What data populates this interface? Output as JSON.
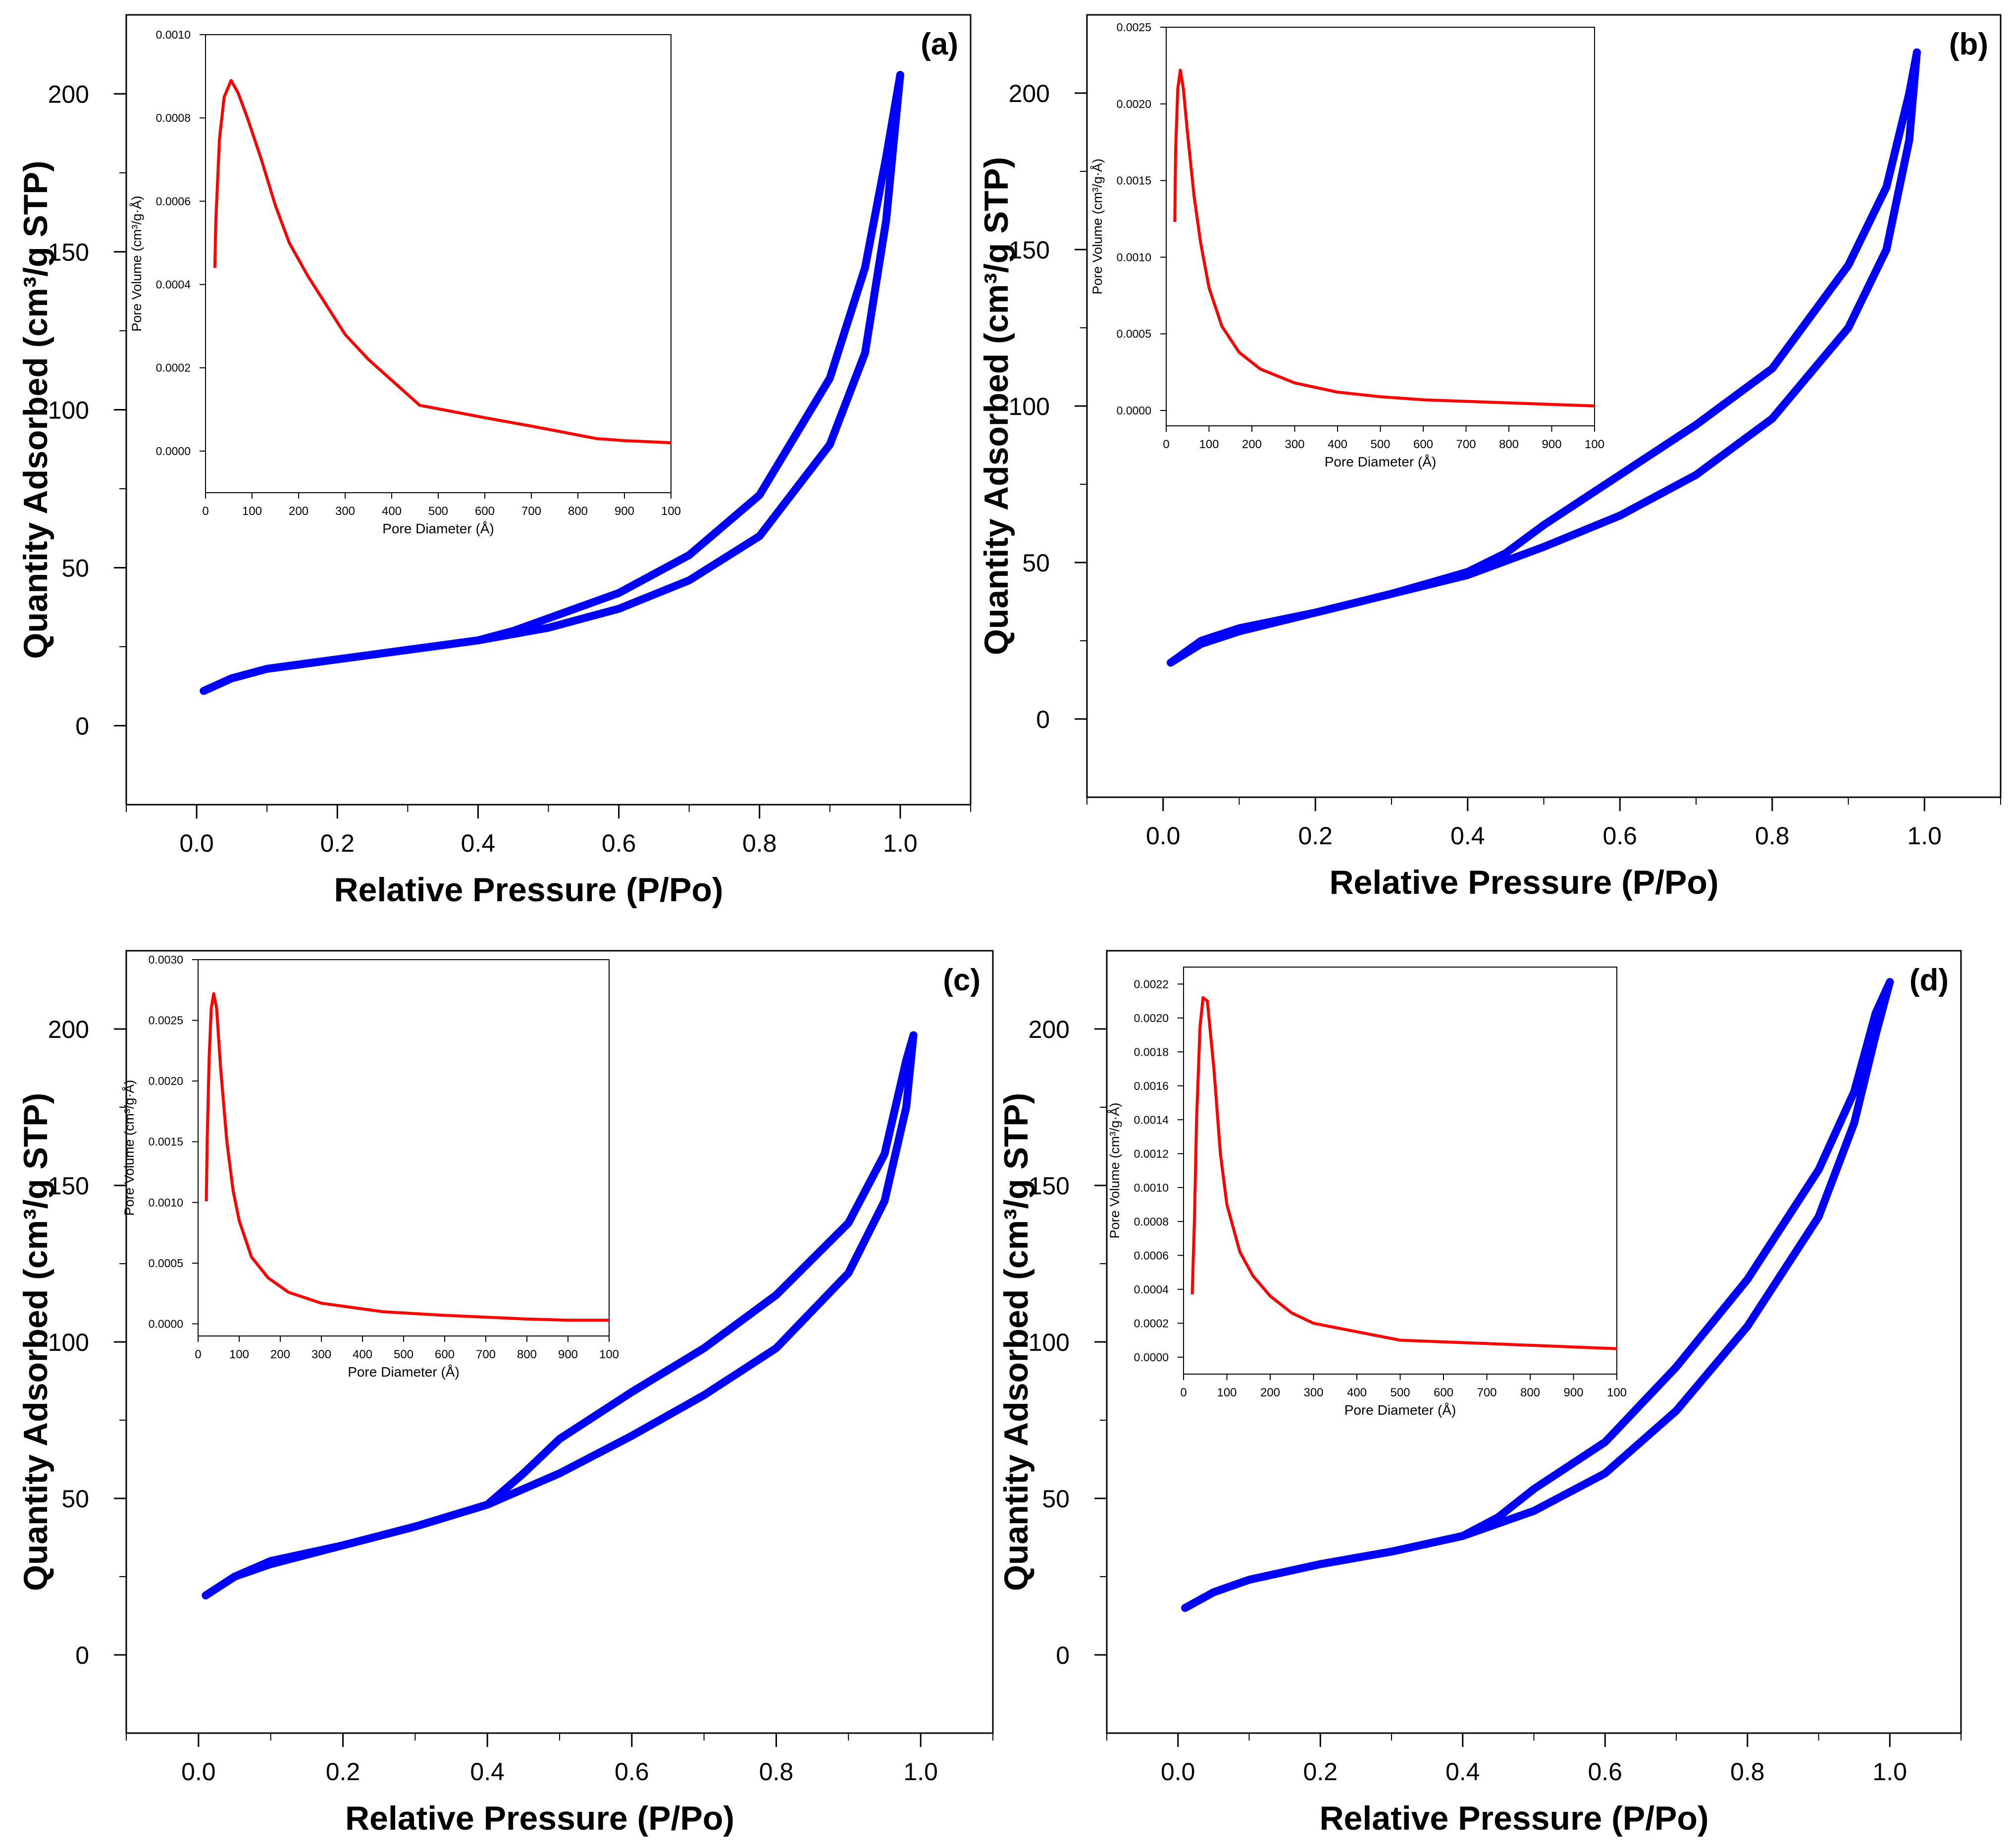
{
  "figure": {
    "main_line_color": "#0000ff",
    "inset_line_color": "#ff0000"
  },
  "chart_data": [
    {
      "type": "line",
      "panel_label": "(a)",
      "xlabel": "Relative Pressure (P/Po)",
      "ylabel": "Quantity Adsorbed (cm³/g STP)",
      "xlim": [
        -0.1,
        1.1
      ],
      "ylim": [
        -25,
        225
      ],
      "x_ticks": [
        "0.0",
        "0.2",
        "0.4",
        "0.6",
        "0.8",
        "1.0"
      ],
      "y_ticks": [
        "0",
        "50",
        "100",
        "150",
        "200"
      ],
      "series": [
        {
          "name": "adsorption",
          "x": [
            0.01,
            0.05,
            0.1,
            0.2,
            0.3,
            0.4,
            0.5,
            0.6,
            0.7,
            0.8,
            0.9,
            0.95,
            0.98,
            1.0
          ],
          "values": [
            11,
            15,
            18,
            21,
            24,
            27,
            31,
            37,
            46,
            60,
            89,
            118,
            160,
            206
          ]
        },
        {
          "name": "desorption",
          "x": [
            1.0,
            0.98,
            0.95,
            0.9,
            0.8,
            0.7,
            0.6,
            0.5,
            0.45,
            0.4,
            0.3,
            0.2,
            0.1,
            0.05,
            0.01
          ],
          "values": [
            206,
            180,
            145,
            110,
            73,
            54,
            42,
            34,
            30,
            27,
            24,
            21,
            18,
            15,
            11
          ]
        }
      ],
      "inset": {
        "type": "line",
        "xlabel": "Pore Diameter (Å)",
        "ylabel": "Pore Volume (cm³/g·Å)",
        "xlim": [
          0,
          1000
        ],
        "ylim": [
          -0.0001,
          0.001
        ],
        "x_ticks": [
          "0",
          "100",
          "200",
          "300",
          "400",
          "500",
          "600",
          "700",
          "800",
          "900",
          "100"
        ],
        "y_ticks": [
          "0.0000",
          "0.0002",
          "0.0004",
          "0.0006",
          "0.0008",
          "0.0010"
        ],
        "x": [
          20,
          22,
          30,
          40,
          55,
          70,
          90,
          120,
          150,
          180,
          220,
          300,
          350,
          460,
          600,
          700,
          840,
          900,
          1000
        ],
        "values": [
          0.00044,
          0.00055,
          0.00075,
          0.00085,
          0.00089,
          0.00086,
          0.0008,
          0.0007,
          0.00059,
          0.0005,
          0.00042,
          0.00028,
          0.00022,
          0.00011,
          8e-05,
          6e-05,
          3e-05,
          2.5e-05,
          2e-05
        ]
      }
    },
    {
      "type": "line",
      "panel_label": "(b)",
      "xlabel": "Relative Pressure (P/Po)",
      "ylabel": "Quantity Adsorbed (cm³/g STP)",
      "xlim": [
        -0.1,
        1.1
      ],
      "ylim": [
        -25,
        225
      ],
      "x_ticks": [
        "0.0",
        "0.2",
        "0.4",
        "0.6",
        "0.8",
        "1.0"
      ],
      "y_ticks": [
        "0",
        "50",
        "100",
        "150",
        "200"
      ],
      "series": [
        {
          "name": "adsorption",
          "x": [
            0.01,
            0.05,
            0.1,
            0.2,
            0.3,
            0.4,
            0.5,
            0.6,
            0.7,
            0.8,
            0.9,
            0.95,
            0.98,
            0.99
          ],
          "values": [
            18,
            24,
            28,
            34,
            40,
            46,
            55,
            65,
            78,
            96,
            125,
            150,
            185,
            213
          ]
        },
        {
          "name": "desorption",
          "x": [
            0.99,
            0.98,
            0.95,
            0.9,
            0.8,
            0.7,
            0.6,
            0.5,
            0.45,
            0.4,
            0.3,
            0.2,
            0.1,
            0.05,
            0.01
          ],
          "values": [
            213,
            200,
            170,
            145,
            112,
            94,
            78,
            62,
            53,
            47,
            40,
            34,
            29,
            25,
            18
          ]
        }
      ],
      "inset": {
        "type": "line",
        "xlabel": "Pore Diameter (Å)",
        "ylabel": "Pore Volume (cm³/g·Å)",
        "xlim": [
          0,
          1000
        ],
        "ylim": [
          -0.0001,
          0.0025
        ],
        "x_ticks": [
          "0",
          "100",
          "200",
          "300",
          "400",
          "500",
          "600",
          "700",
          "800",
          "900",
          "100"
        ],
        "y_ticks": [
          "0.0000",
          "0.0005",
          "0.0010",
          "0.0015",
          "0.0020",
          "0.0025"
        ],
        "x": [
          20,
          22,
          27,
          33,
          40,
          50,
          65,
          80,
          100,
          130,
          170,
          220,
          300,
          400,
          500,
          600,
          700,
          800,
          900,
          1000
        ],
        "values": [
          0.00123,
          0.0017,
          0.0021,
          0.00222,
          0.0021,
          0.0018,
          0.0014,
          0.0011,
          0.0008,
          0.00055,
          0.00038,
          0.00027,
          0.00018,
          0.00012,
          9e-05,
          7e-05,
          6e-05,
          5e-05,
          4e-05,
          3e-05
        ]
      }
    },
    {
      "type": "line",
      "panel_label": "(c)",
      "xlabel": "Relative Pressure (P/Po)",
      "ylabel": "Quantity Adsorbed (cm³/g STP)",
      "xlim": [
        -0.1,
        1.1
      ],
      "ylim": [
        -25,
        225
      ],
      "x_ticks": [
        "0.0",
        "0.2",
        "0.4",
        "0.6",
        "0.8",
        "1.0"
      ],
      "y_ticks": [
        "0",
        "50",
        "100",
        "150",
        "200"
      ],
      "series": [
        {
          "name": "adsorption",
          "x": [
            0.01,
            0.05,
            0.1,
            0.2,
            0.3,
            0.4,
            0.5,
            0.6,
            0.7,
            0.8,
            0.9,
            0.95,
            0.98,
            0.99
          ],
          "values": [
            19,
            25,
            29,
            35,
            41,
            48,
            58,
            70,
            83,
            98,
            122,
            145,
            175,
            198
          ]
        },
        {
          "name": "desorption",
          "x": [
            0.99,
            0.98,
            0.95,
            0.9,
            0.8,
            0.7,
            0.6,
            0.5,
            0.45,
            0.4,
            0.3,
            0.2,
            0.1,
            0.05,
            0.01
          ],
          "values": [
            198,
            190,
            160,
            138,
            115,
            98,
            84,
            69,
            58,
            48,
            41,
            35,
            30,
            25,
            19
          ]
        }
      ],
      "inset": {
        "type": "line",
        "xlabel": "Pore Diameter (Å)",
        "ylabel": "Pore Volume (cm³/g·Å)",
        "xlim": [
          0,
          1000
        ],
        "ylim": [
          -0.0001,
          0.003
        ],
        "x_ticks": [
          "0",
          "100",
          "200",
          "300",
          "400",
          "500",
          "600",
          "700",
          "800",
          "900",
          "100"
        ],
        "y_ticks": [
          "0.0000",
          "0.0005",
          "0.0010",
          "0.0015",
          "0.0020",
          "0.0025",
          "0.0030"
        ],
        "x": [
          20,
          22,
          27,
          32,
          38,
          45,
          55,
          70,
          85,
          100,
          130,
          170,
          220,
          300,
          450,
          600,
          800,
          900,
          1000
        ],
        "values": [
          0.00101,
          0.0015,
          0.0022,
          0.0026,
          0.00272,
          0.0026,
          0.0021,
          0.0015,
          0.0011,
          0.00085,
          0.00055,
          0.00038,
          0.00026,
          0.00017,
          0.0001,
          7e-05,
          4e-05,
          3e-05,
          3e-05
        ]
      }
    },
    {
      "type": "line",
      "panel_label": "(d)",
      "xlabel": "Relative Pressure (P/Po)",
      "ylabel": "Quantity Adsorbed (cm³/g STP)",
      "xlim": [
        -0.1,
        1.1
      ],
      "ylim": [
        -25,
        225
      ],
      "x_ticks": [
        "0.0",
        "0.2",
        "0.4",
        "0.6",
        "0.8",
        "1.0"
      ],
      "y_ticks": [
        "0",
        "50",
        "100",
        "150",
        "200"
      ],
      "series": [
        {
          "name": "adsorption",
          "x": [
            0.01,
            0.05,
            0.1,
            0.2,
            0.3,
            0.4,
            0.5,
            0.6,
            0.7,
            0.8,
            0.9,
            0.95,
            0.98,
            1.0
          ],
          "values": [
            15,
            20,
            24,
            29,
            33,
            38,
            46,
            58,
            78,
            105,
            140,
            170,
            198,
            215
          ]
        },
        {
          "name": "desorption",
          "x": [
            1.0,
            0.98,
            0.95,
            0.9,
            0.8,
            0.7,
            0.6,
            0.5,
            0.45,
            0.4,
            0.3,
            0.2,
            0.1,
            0.05,
            0.01
          ],
          "values": [
            215,
            205,
            180,
            155,
            120,
            92,
            68,
            53,
            44,
            38,
            33,
            29,
            24,
            20,
            15
          ]
        }
      ],
      "inset": {
        "type": "line",
        "xlabel": "Pore Diameter (Å)",
        "ylabel": "Pore Volume (cm³/g·Å)",
        "xlim": [
          0,
          1000
        ],
        "ylim": [
          -0.0001,
          0.0023
        ],
        "x_ticks": [
          "0",
          "100",
          "200",
          "300",
          "400",
          "500",
          "600",
          "700",
          "800",
          "900",
          "100"
        ],
        "y_ticks": [
          "0.0000",
          "0.0002",
          "0.0004",
          "0.0006",
          "0.0008",
          "0.0010",
          "0.0012",
          "0.0014",
          "0.0016",
          "0.0018",
          "0.0020",
          "0.0022"
        ],
        "x": [
          20,
          25,
          30,
          38,
          45,
          55,
          70,
          85,
          100,
          130,
          160,
          200,
          250,
          300,
          400,
          500,
          600,
          700,
          800,
          900,
          1000
        ],
        "values": [
          0.00037,
          0.0008,
          0.0014,
          0.00195,
          0.00212,
          0.0021,
          0.0017,
          0.0012,
          0.0009,
          0.00062,
          0.00048,
          0.00036,
          0.00026,
          0.0002,
          0.00015,
          0.0001,
          9e-05,
          8e-05,
          7e-05,
          6e-05,
          5e-05
        ]
      }
    }
  ]
}
